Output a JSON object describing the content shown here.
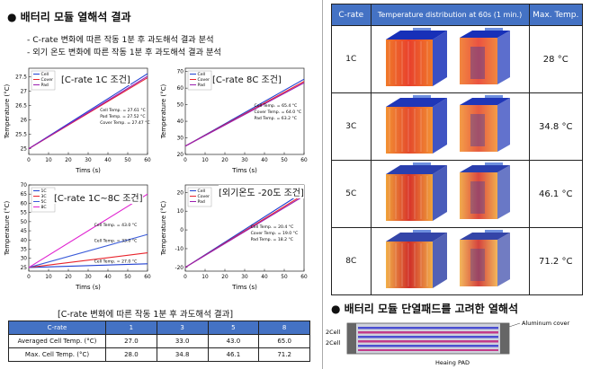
{
  "left": {
    "title": "배터리 모듈 열해석 결과",
    "bullets": [
      "C-rate 변화에 따른 작동 1분 후 과도해석 결과 분석",
      "외기 온도 변화에 따른 작동 1분 후 과도해석 결과 분석"
    ],
    "charts": [
      {
        "key": "c1",
        "label": "[C-rate 1C 조건]",
        "ylabel": "Temperature (°C)",
        "xlabel": "Tims (s)",
        "legend": [
          "Cell",
          "Cover",
          "Pad"
        ],
        "colors": [
          "#1f3fd1",
          "#e8242c",
          "#9b1fb0"
        ],
        "notes": [
          "Cell Temp. = 27.61 °C",
          "Pad Temp. = 27.52 °C",
          "Cover Temp. = 27.47 °C"
        ],
        "xticks": [
          0,
          10,
          20,
          30,
          40,
          50,
          60
        ],
        "yticks": [
          25.0,
          25.5,
          26.0,
          26.5,
          27.0,
          27.5
        ],
        "ylim": [
          24.8,
          27.8
        ],
        "series": [
          {
            "x": [
              0,
              60
            ],
            "y": [
              25.0,
              27.61
            ]
          },
          {
            "x": [
              0,
              60
            ],
            "y": [
              25.0,
              27.47
            ]
          },
          {
            "x": [
              0,
              60
            ],
            "y": [
              25.0,
              27.52
            ]
          }
        ]
      },
      {
        "key": "c2",
        "label": "[C-rate 8C 조건]",
        "ylabel": "Temperature (°C)",
        "xlabel": "Tims (s)",
        "legend": [
          "Cell",
          "Cover",
          "Pad"
        ],
        "colors": [
          "#1f3fd1",
          "#e8242c",
          "#9b1fb0"
        ],
        "notes": [
          "Cell Temp. = 65.4 °C",
          "Cover Temp. = 64.0 °C",
          "Pad Temp. = 63.2 °C"
        ],
        "xticks": [
          0,
          10,
          20,
          30,
          40,
          50,
          60
        ],
        "yticks": [
          20,
          30,
          40,
          50,
          60,
          70
        ],
        "ylim": [
          20,
          72
        ],
        "series": [
          {
            "x": [
              0,
              60
            ],
            "y": [
              25,
              65.4
            ]
          },
          {
            "x": [
              0,
              60
            ],
            "y": [
              25,
              64.0
            ]
          },
          {
            "x": [
              0,
              60
            ],
            "y": [
              25,
              63.2
            ]
          }
        ]
      },
      {
        "key": "c3",
        "label": "[C-rate 1C~8C 조건]",
        "ylabel": "Temperature (°C)",
        "xlabel": "Tims (s)",
        "legend": [
          "1C",
          "3C",
          "5C",
          "8C"
        ],
        "colors": [
          "#1f3fd1",
          "#e8242c",
          "#3a5bd9",
          "#e020d0"
        ],
        "notes": [
          "Cell Temp. = 65.0 °C",
          "Cell Temp. = 43.0 °C",
          "Cell Temp. = 33.0 °C",
          "Cell Temp. = 27.0 °C"
        ],
        "xticks": [
          0,
          10,
          20,
          30,
          40,
          50,
          60
        ],
        "yticks": [
          25,
          30,
          35,
          40,
          45,
          50,
          55,
          60,
          65,
          70
        ],
        "ylim": [
          23,
          70
        ],
        "series": [
          {
            "x": [
              0,
              60
            ],
            "y": [
              25,
              27.0
            ]
          },
          {
            "x": [
              0,
              60
            ],
            "y": [
              25,
              33.0
            ]
          },
          {
            "x": [
              0,
              60
            ],
            "y": [
              25,
              43.0
            ]
          },
          {
            "x": [
              0,
              60
            ],
            "y": [
              25,
              65.0
            ]
          }
        ]
      },
      {
        "key": "c4",
        "label": "[외기온도 -20도 조건]",
        "ylabel": "Temperature (°C)",
        "xlabel": "Tims (s)",
        "legend": [
          "Cell",
          "Cover",
          "Pad"
        ],
        "colors": [
          "#1f3fd1",
          "#e8242c",
          "#9b1fb0"
        ],
        "notes": [
          "Cell Temp. = 20.4 °C",
          "Cover Temp. = 19.0 °C",
          "Pad Temp. = 18.2 °C"
        ],
        "xticks": [
          0,
          10,
          20,
          30,
          40,
          50,
          60
        ],
        "yticks": [
          -20,
          -10,
          0,
          10,
          20
        ],
        "ylim": [
          -22,
          24
        ],
        "series": [
          {
            "x": [
              0,
              60
            ],
            "y": [
              -20,
              20.4
            ]
          },
          {
            "x": [
              0,
              60
            ],
            "y": [
              -20,
              19.0
            ]
          },
          {
            "x": [
              0,
              60
            ],
            "y": [
              -20,
              18.2
            ]
          }
        ]
      }
    ],
    "table_title": "[C-rate 변화에 따른 작동 1분 후 과도해석 결과]",
    "table": {
      "header": [
        "C-rate",
        "1",
        "3",
        "5",
        "8"
      ],
      "rows": [
        [
          "Averaged Cell Temp. (°C)",
          "27.0",
          "33.0",
          "43.0",
          "65.0"
        ],
        [
          "Max. Cell Temp. (°C)",
          "28.0",
          "34.8",
          "46.1",
          "71.2"
        ]
      ]
    }
  },
  "right": {
    "header": [
      "C-rate",
      "Temperature distribution at 60s (1 min.)",
      "Max. Temp."
    ],
    "rows": [
      {
        "c": "1C",
        "t": "28 °C"
      },
      {
        "c": "3C",
        "t": "34.8 °C"
      },
      {
        "c": "5C",
        "t": "46.1 °C"
      },
      {
        "c": "8C",
        "t": "71.2 °C"
      }
    ],
    "bottom_title": "배터리 모듈 단열패드를 고려한 열해석",
    "diagram": {
      "left_labels": [
        "2Cell",
        "2Cell"
      ],
      "right_label": "Aluminum cover",
      "bottom_label": "Heaing PAD"
    }
  },
  "chart_data": [
    {
      "type": "line",
      "title": "[C-rate 1C 조건]",
      "xlabel": "Tims (s)",
      "ylabel": "Temperature (°C)",
      "series": [
        {
          "name": "Cell",
          "x": [
            0,
            60
          ],
          "y": [
            25.0,
            27.61
          ]
        },
        {
          "name": "Cover",
          "x": [
            0,
            60
          ],
          "y": [
            25.0,
            27.47
          ]
        },
        {
          "name": "Pad",
          "x": [
            0,
            60
          ],
          "y": [
            25.0,
            27.52
          ]
        }
      ]
    },
    {
      "type": "line",
      "title": "[C-rate 8C 조건]",
      "xlabel": "Tims (s)",
      "ylabel": "Temperature (°C)",
      "series": [
        {
          "name": "Cell",
          "x": [
            0,
            60
          ],
          "y": [
            25,
            65.4
          ]
        },
        {
          "name": "Cover",
          "x": [
            0,
            60
          ],
          "y": [
            25,
            64.0
          ]
        },
        {
          "name": "Pad",
          "x": [
            0,
            60
          ],
          "y": [
            25,
            63.2
          ]
        }
      ]
    },
    {
      "type": "line",
      "title": "[C-rate 1C~8C 조건]",
      "xlabel": "Tims (s)",
      "ylabel": "Temperature (°C)",
      "series": [
        {
          "name": "1C",
          "x": [
            0,
            60
          ],
          "y": [
            25,
            27.0
          ]
        },
        {
          "name": "3C",
          "x": [
            0,
            60
          ],
          "y": [
            25,
            33.0
          ]
        },
        {
          "name": "5C",
          "x": [
            0,
            60
          ],
          "y": [
            25,
            43.0
          ]
        },
        {
          "name": "8C",
          "x": [
            0,
            60
          ],
          "y": [
            25,
            65.0
          ]
        }
      ]
    },
    {
      "type": "line",
      "title": "[외기온도 -20도 조건]",
      "xlabel": "Tims (s)",
      "ylabel": "Temperature (°C)",
      "series": [
        {
          "name": "Cell",
          "x": [
            0,
            60
          ],
          "y": [
            -20,
            20.4
          ]
        },
        {
          "name": "Cover",
          "x": [
            0,
            60
          ],
          "y": [
            -20,
            19.0
          ]
        },
        {
          "name": "Pad",
          "x": [
            0,
            60
          ],
          "y": [
            -20,
            18.2
          ]
        }
      ]
    },
    {
      "type": "table",
      "title": "[C-rate 변화에 따른 작동 1분 후 과도해석 결과]",
      "columns": [
        "C-rate",
        "1",
        "3",
        "5",
        "8"
      ],
      "rows": [
        [
          "Averaged Cell Temp. (°C)",
          27.0,
          33.0,
          43.0,
          65.0
        ],
        [
          "Max. Cell Temp. (°C)",
          28.0,
          34.8,
          46.1,
          71.2
        ]
      ]
    }
  ]
}
